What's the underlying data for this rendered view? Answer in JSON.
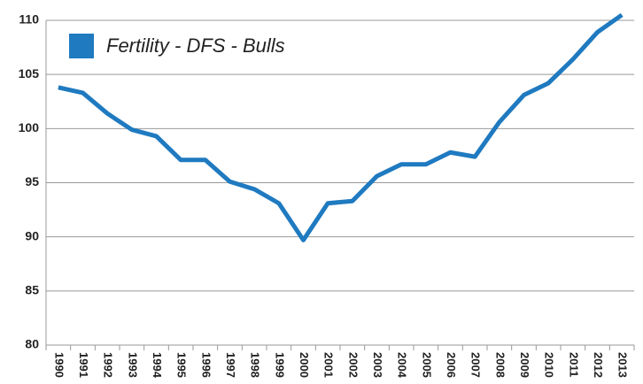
{
  "chart_data": {
    "type": "line",
    "categories": [
      "1990",
      "1991",
      "1992",
      "1993",
      "1994",
      "1995",
      "1996",
      "1997",
      "1998",
      "1999",
      "2000",
      "2001",
      "2002",
      "2003",
      "2004",
      "2005",
      "2006",
      "2007",
      "2008",
      "2009",
      "2010",
      "2011",
      "2012",
      "2013"
    ],
    "series": [
      {
        "name": "Fertility - DFS - Bulls",
        "color": "#1f7ac0",
        "values": [
          103.8,
          103.3,
          101.4,
          99.9,
          99.3,
          97.1,
          97.1,
          95.1,
          94.4,
          93.1,
          89.7,
          93.1,
          93.3,
          95.6,
          96.7,
          96.7,
          97.8,
          97.4,
          100.6,
          103.1,
          104.2,
          106.4,
          108.9,
          110.5
        ]
      }
    ],
    "ylim": [
      80,
      110
    ],
    "yticks": [
      80,
      85,
      90,
      95,
      100,
      105,
      110
    ],
    "grid": true,
    "legend": "top-left"
  }
}
